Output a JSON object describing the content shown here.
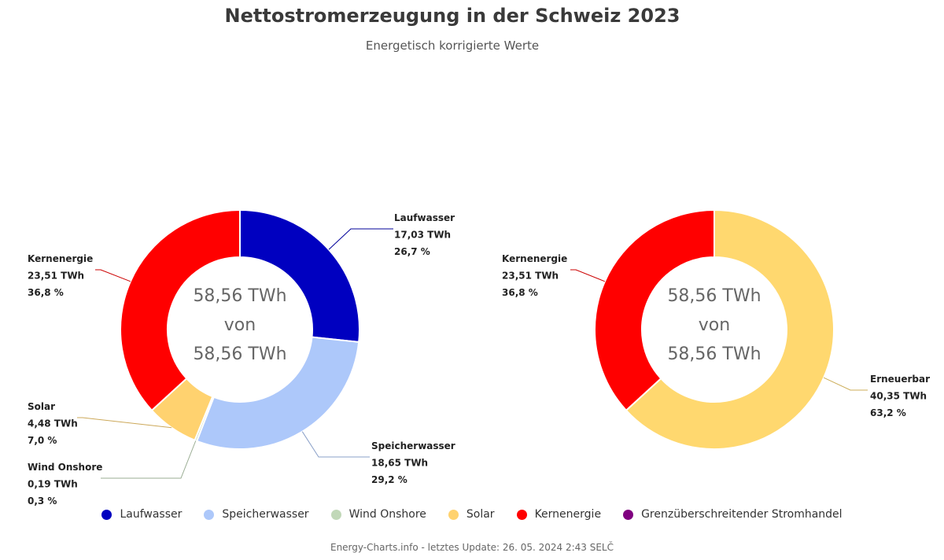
{
  "header": {
    "title": "Nettostromerzeugung in der Schweiz 2023",
    "subtitle": "Energetisch korrigierte Werte"
  },
  "chart_data": [
    {
      "type": "pie",
      "variant": "donut",
      "center_lines": [
        "58,56 TWh",
        "von",
        "58,56 TWh"
      ],
      "slices": [
        {
          "name": "Laufwasser",
          "value": 17.03,
          "value_label": "17,03 TWh",
          "percent_label": "26,7 %",
          "color": "#0000c0"
        },
        {
          "name": "Speicherwasser",
          "value": 18.65,
          "value_label": "18,65 TWh",
          "percent_label": "29,2 %",
          "color": "#adc8fa"
        },
        {
          "name": "Wind Onshore",
          "value": 0.19,
          "value_label": "0,19 TWh",
          "percent_label": "0,3 %",
          "color": "#c1d8b8"
        },
        {
          "name": "Solar",
          "value": 4.48,
          "value_label": "4,48 TWh",
          "percent_label": "7,0 %",
          "color": "#ffd26f"
        },
        {
          "name": "Kernenergie",
          "value": 23.51,
          "value_label": "23,51 TWh",
          "percent_label": "36,8 %",
          "color": "#ff0000"
        }
      ]
    },
    {
      "type": "pie",
      "variant": "donut",
      "center_lines": [
        "58,56 TWh",
        "von",
        "58,56 TWh"
      ],
      "slices": [
        {
          "name": "Erneuerbar",
          "value": 40.35,
          "value_label": "40,35 TWh",
          "percent_label": "63,2 %",
          "color": "#ffd86f"
        },
        {
          "name": "Kernenergie",
          "value": 23.51,
          "value_label": "23,51 TWh",
          "percent_label": "36,8 %",
          "color": "#ff0000"
        }
      ]
    }
  ],
  "legend": {
    "placement": "bottom",
    "items": [
      {
        "label": "Laufwasser",
        "color": "#0000c0"
      },
      {
        "label": "Speicherwasser",
        "color": "#adc8fa"
      },
      {
        "label": "Wind Onshore",
        "color": "#c1d8b8"
      },
      {
        "label": "Solar",
        "color": "#ffd26f"
      },
      {
        "label": "Kernenergie",
        "color": "#ff0000"
      },
      {
        "label": "Grenzüberschreitender Stromhandel",
        "color": "#800080"
      }
    ]
  },
  "footer": {
    "credit": "Energy-Charts.info - letztes Update: 26. 05. 2024 2:43 SELČ"
  }
}
